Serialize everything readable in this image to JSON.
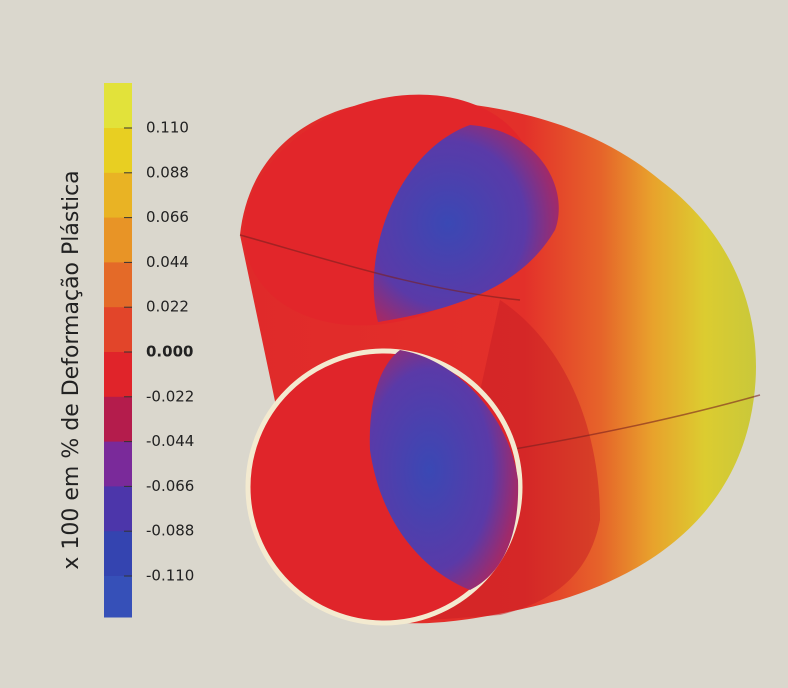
{
  "colorbar": {
    "title": "x 100 em % de Deformação Plástica",
    "labels": [
      "0.110",
      "0.088",
      "0.066",
      "0.044",
      "0.022",
      "0.000",
      "-0.022",
      "-0.044",
      "-0.066",
      "-0.088",
      "-0.110"
    ],
    "band_colors": [
      "#e2e23a",
      "#e8cf22",
      "#e9b324",
      "#e89426",
      "#e46a28",
      "#e2452a",
      "#e0242a",
      "#b41c4c",
      "#7a2a9a",
      "#4c36aa",
      "#3444b0",
      "#3650b8"
    ]
  }
}
